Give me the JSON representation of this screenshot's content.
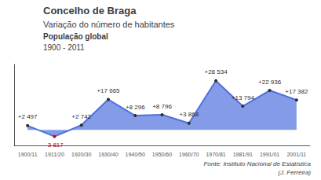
{
  "chart_data": {
    "type": "line",
    "title": "Concelho de Braga",
    "subtitle": "Variação do número de habitantes",
    "annotations": [
      "População global",
      "1900 - 2011",
      "Fonte: Instituto Nacional de Estatística",
      "(J. Ferreira)"
    ],
    "categories": [
      "1900/11",
      "1911/20",
      "1920/30",
      "1930/40",
      "1940/50",
      "1950/60",
      "1960/70",
      "1970/81",
      "1981/91",
      "1991/01",
      "2001/11"
    ],
    "values": [
      2497,
      -3817,
      2742,
      17665,
      8296,
      8796,
      3868,
      28534,
      13794,
      22936,
      17382
    ],
    "value_labels": [
      "+2 497",
      "-3 817",
      "+2 742",
      "+17 665",
      "+8 296",
      "+8 796",
      "+3 868",
      "+28 534",
      "+13 794",
      "+22 936",
      "+17 382"
    ],
    "colors": [
      "#2c2c2c",
      "#cc0000",
      "#2c2c2c",
      "#2c2c2c",
      "#2c2c2c",
      "#2c2c2c",
      "#2c2c2c",
      "#2c2c2c",
      "#2c2c2c",
      "#2c2c2c",
      "#2c2c2c"
    ],
    "ylim": [
      -9000,
      38000
    ],
    "tick_labels": "x",
    "grid": false,
    "data_labels": true
  }
}
